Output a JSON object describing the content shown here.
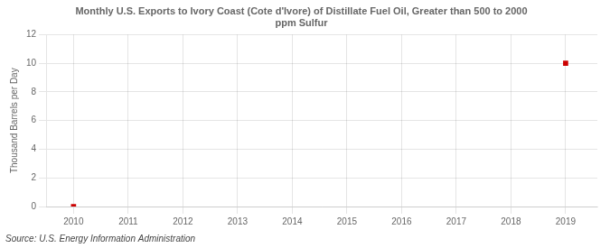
{
  "chart_data": {
    "type": "scatter",
    "title": "Monthly U.S. Exports to Ivory Coast (Cote d'Ivore) of Distillate Fuel Oil, Greater than 500 to 2000\nppm Sulfur",
    "ylabel": "Thousand Barrels per Day",
    "source": "Source: U.S. Energy Information Administration",
    "x": [
      2010,
      2019
    ],
    "values": [
      0,
      10
    ],
    "color": "#cc0000",
    "marker": "square",
    "xlim": [
      2009.5,
      2019.58
    ],
    "ylim": [
      0,
      12
    ],
    "xticks": [
      2010,
      2011,
      2012,
      2013,
      2014,
      2015,
      2016,
      2017,
      2018,
      2019
    ],
    "yticks": [
      0,
      2,
      4,
      6,
      8,
      10,
      12
    ],
    "grid": true
  }
}
